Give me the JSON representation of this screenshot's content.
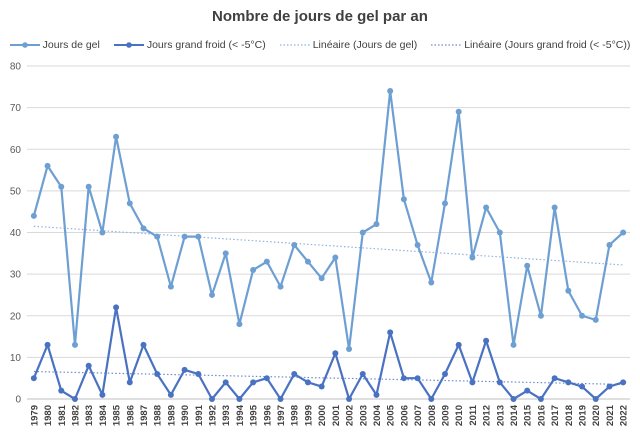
{
  "chart_data": {
    "type": "line",
    "title": "Nombre de jours de gel par an",
    "xlabel": "",
    "ylabel": "",
    "ylim": [
      0,
      80
    ],
    "yticks": [
      0,
      10,
      20,
      30,
      40,
      50,
      60,
      70,
      80
    ],
    "grid": true,
    "legend": "top",
    "categories": [
      "1979",
      "1980",
      "1981",
      "1982",
      "1983",
      "1984",
      "1985",
      "1986",
      "1987",
      "1988",
      "1989",
      "1990",
      "1991",
      "1992",
      "1993",
      "1994",
      "1995",
      "1996",
      "1997",
      "1998",
      "1999",
      "2000",
      "2001",
      "2002",
      "2003",
      "2004",
      "2005",
      "2006",
      "2007",
      "2008",
      "2009",
      "2010",
      "2011",
      "2012",
      "2013",
      "2014",
      "2015",
      "2016",
      "2017",
      "2018",
      "2019",
      "2020",
      "2021",
      "2022"
    ],
    "series": [
      {
        "name": "Jours de gel",
        "color": "#6e9fd2",
        "values": [
          44,
          56,
          51,
          13,
          51,
          40,
          63,
          47,
          41,
          39,
          27,
          39,
          39,
          25,
          35,
          18,
          31,
          33,
          27,
          37,
          33,
          29,
          34,
          12,
          40,
          42,
          74,
          48,
          37,
          28,
          47,
          69,
          34,
          46,
          40,
          13,
          32,
          20,
          46,
          26,
          20,
          19,
          37,
          40
        ]
      },
      {
        "name": "Jours grand froid (< -5°C)",
        "color": "#4a72c2",
        "values": [
          5,
          13,
          2,
          0,
          8,
          1,
          22,
          4,
          13,
          6,
          1,
          7,
          6,
          0,
          4,
          0,
          4,
          5,
          0,
          6,
          4,
          3,
          11,
          0,
          6,
          1,
          16,
          5,
          5,
          0,
          6,
          13,
          4,
          14,
          4,
          0,
          2,
          0,
          5,
          4,
          3,
          0,
          3,
          4
        ]
      }
    ],
    "trendlines": [
      {
        "name": "Linéaire (Jours de gel)",
        "color": "#8fb3de",
        "start": 41.5,
        "end": 32.2
      },
      {
        "name": "Linéaire (Jours grand froid (< -5°C))",
        "color": "#6a8ccf",
        "start": 6.6,
        "end": 3.5
      }
    ],
    "legend_entries": [
      {
        "label": "Jours de gel",
        "kind": "line-marker",
        "color": "#6e9fd2"
      },
      {
        "label": "Jours grand froid (< -5°C)",
        "kind": "line-marker",
        "color": "#4a72c2"
      },
      {
        "label": "Linéaire (Jours de gel)",
        "kind": "dotted",
        "color": "#8fb3de"
      },
      {
        "label": "Linéaire (Jours grand froid (< -5°C))",
        "kind": "dotted",
        "color": "#6a8ccf"
      }
    ]
  }
}
